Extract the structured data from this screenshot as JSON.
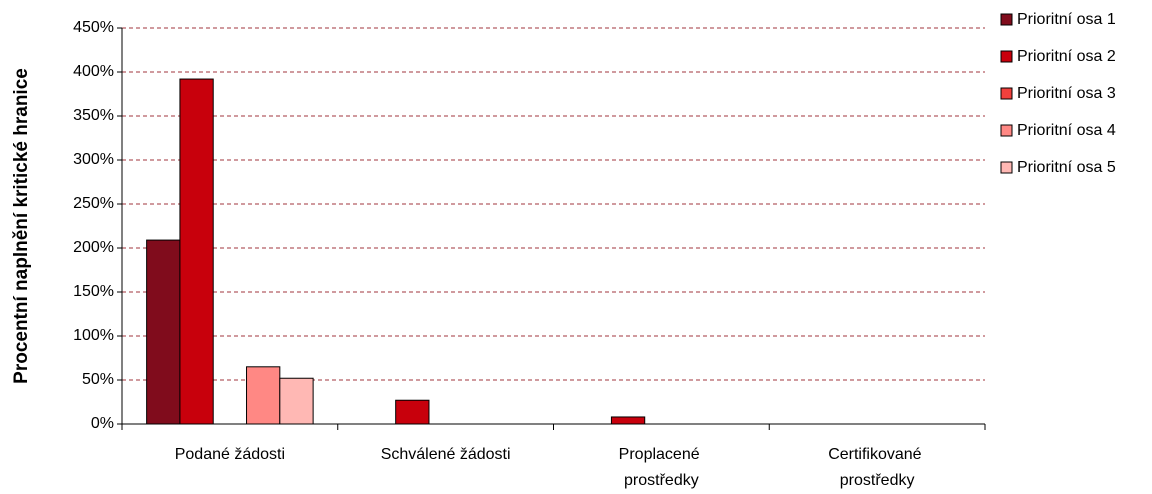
{
  "chart_data": {
    "type": "bar",
    "y_label": "Procentní naplnění kritické hranice",
    "categories": [
      "Podané žádosti",
      "Schválené žádosti",
      "Proplacené prostředky",
      "Certifikované prostředky"
    ],
    "series": [
      {
        "name": "Prioritní osa 1",
        "color": "#800c1c",
        "values": [
          209,
          0,
          0,
          0
        ]
      },
      {
        "name": "Prioritní osa 2",
        "color": "#c8000c",
        "values": [
          392,
          27,
          8,
          0
        ]
      },
      {
        "name": "Prioritní osa 3",
        "color": "#f0403c",
        "values": [
          0,
          0,
          0,
          0
        ]
      },
      {
        "name": "Prioritní osa 4",
        "color": "#ff8884",
        "values": [
          65,
          0,
          0,
          0
        ]
      },
      {
        "name": "Prioritní osa 5",
        "color": "#ffb8b4",
        "values": [
          52,
          0,
          0,
          0
        ]
      }
    ],
    "ylim": [
      0,
      450
    ],
    "yticks": [
      {
        "value": 0,
        "label": "0%"
      },
      {
        "value": 50,
        "label": "50%"
      },
      {
        "value": 100,
        "label": "100%"
      },
      {
        "value": 150,
        "label": "150%"
      },
      {
        "value": 200,
        "label": "200%"
      },
      {
        "value": 250,
        "label": "250%"
      },
      {
        "value": 300,
        "label": "300%"
      },
      {
        "value": 350,
        "label": "350%"
      },
      {
        "value": 400,
        "label": "400%"
      },
      {
        "value": 450,
        "label": "450%"
      }
    ],
    "grid": true,
    "legend": "right"
  }
}
